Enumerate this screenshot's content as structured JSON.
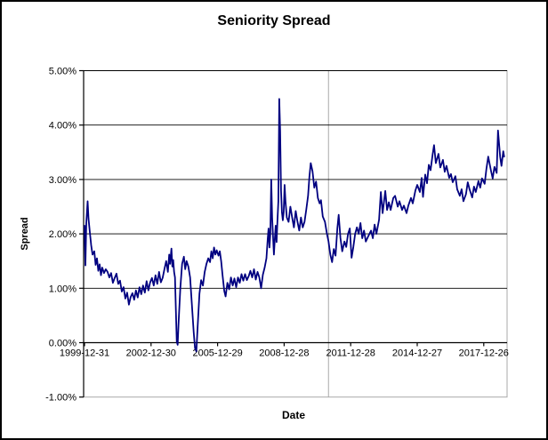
{
  "window": {
    "background": "#ffffff",
    "border_color": "#000000"
  },
  "colors": {
    "series_line": "#000080",
    "gridline": "#000000",
    "axis_line": "#000000",
    "plot_border": "#a9a9a9",
    "vertical_marker": "#a9a9a9",
    "text": "#000000"
  },
  "chart_data": {
    "type": "line",
    "title": "Seniority Spread",
    "xlabel": "Date",
    "ylabel": "Spread",
    "legend": "none",
    "grid": "horizontal-black-gridlines, light-gray plot border, one light-gray vertical marker line",
    "ylim": [
      -1,
      5
    ],
    "y_ticks": [
      {
        "v": 5,
        "label": "5.00%"
      },
      {
        "v": 4,
        "label": "4.00%"
      },
      {
        "v": 3,
        "label": "3.00%"
      },
      {
        "v": 2,
        "label": "2.00%"
      },
      {
        "v": 1,
        "label": "1.00%"
      },
      {
        "v": 0,
        "label": "0.00%"
      },
      {
        "v": -1,
        "label": "-1.00%"
      }
    ],
    "x_ticks": [
      {
        "year": 2000,
        "label": "1999-12-31"
      },
      {
        "year": 2003,
        "label": "2002-12-30"
      },
      {
        "year": 2006,
        "label": "2005-12-29"
      },
      {
        "year": 2009,
        "label": "2008-12-28"
      },
      {
        "year": 2012,
        "label": "2011-12-28"
      },
      {
        "year": 2015,
        "label": "2014-12-27"
      },
      {
        "year": 2018,
        "label": "2017-12-26"
      }
    ],
    "vertical_marker": {
      "year": 2011.0
    },
    "series": [
      {
        "name": "Seniority Spread",
        "color": "#000080",
        "points": [
          [
            2000.0,
            2.15
          ],
          [
            2000.04,
            1.42
          ],
          [
            2000.08,
            2.2
          ],
          [
            2000.14,
            2.6
          ],
          [
            2000.18,
            2.28
          ],
          [
            2000.24,
            2.03
          ],
          [
            2000.3,
            1.79
          ],
          [
            2000.36,
            1.62
          ],
          [
            2000.44,
            1.68
          ],
          [
            2000.5,
            1.43
          ],
          [
            2000.56,
            1.55
          ],
          [
            2000.62,
            1.32
          ],
          [
            2000.68,
            1.44
          ],
          [
            2000.74,
            1.24
          ],
          [
            2000.8,
            1.38
          ],
          [
            2000.88,
            1.28
          ],
          [
            2000.96,
            1.35
          ],
          [
            2001.04,
            1.3
          ],
          [
            2001.12,
            1.2
          ],
          [
            2001.2,
            1.28
          ],
          [
            2001.28,
            1.1
          ],
          [
            2001.36,
            1.19
          ],
          [
            2001.44,
            1.27
          ],
          [
            2001.52,
            1.08
          ],
          [
            2001.6,
            1.14
          ],
          [
            2001.68,
            0.94
          ],
          [
            2001.76,
            1.02
          ],
          [
            2001.84,
            0.81
          ],
          [
            2001.92,
            0.92
          ],
          [
            2002.0,
            0.7
          ],
          [
            2002.08,
            0.84
          ],
          [
            2002.16,
            0.91
          ],
          [
            2002.24,
            0.79
          ],
          [
            2002.32,
            0.96
          ],
          [
            2002.4,
            0.83
          ],
          [
            2002.48,
            1.02
          ],
          [
            2002.56,
            0.89
          ],
          [
            2002.64,
            1.05
          ],
          [
            2002.72,
            0.92
          ],
          [
            2002.8,
            1.13
          ],
          [
            2002.88,
            0.96
          ],
          [
            2002.96,
            1.11
          ],
          [
            2003.04,
            1.19
          ],
          [
            2003.12,
            1.05
          ],
          [
            2003.2,
            1.24
          ],
          [
            2003.28,
            1.08
          ],
          [
            2003.36,
            1.3
          ],
          [
            2003.44,
            1.11
          ],
          [
            2003.52,
            1.19
          ],
          [
            2003.6,
            1.35
          ],
          [
            2003.68,
            1.5
          ],
          [
            2003.76,
            1.3
          ],
          [
            2003.82,
            1.62
          ],
          [
            2003.86,
            1.45
          ],
          [
            2003.92,
            1.73
          ],
          [
            2003.96,
            1.4
          ],
          [
            2004.0,
            1.52
          ],
          [
            2004.04,
            1.3
          ],
          [
            2004.08,
            1.2
          ],
          [
            2004.12,
            0.6
          ],
          [
            2004.16,
            0.02
          ],
          [
            2004.2,
            -0.04
          ],
          [
            2004.24,
            0.35
          ],
          [
            2004.32,
            1.0
          ],
          [
            2004.4,
            1.45
          ],
          [
            2004.48,
            1.58
          ],
          [
            2004.54,
            1.35
          ],
          [
            2004.6,
            1.5
          ],
          [
            2004.68,
            1.4
          ],
          [
            2004.76,
            1.2
          ],
          [
            2004.84,
            0.7
          ],
          [
            2004.92,
            0.2
          ],
          [
            2004.98,
            -0.1
          ],
          [
            2005.04,
            -0.16
          ],
          [
            2005.1,
            0.3
          ],
          [
            2005.18,
            0.9
          ],
          [
            2005.26,
            1.15
          ],
          [
            2005.34,
            1.05
          ],
          [
            2005.42,
            1.3
          ],
          [
            2005.5,
            1.45
          ],
          [
            2005.58,
            1.55
          ],
          [
            2005.66,
            1.48
          ],
          [
            2005.72,
            1.68
          ],
          [
            2005.78,
            1.55
          ],
          [
            2005.84,
            1.75
          ],
          [
            2005.9,
            1.62
          ],
          [
            2005.96,
            1.7
          ],
          [
            2006.04,
            1.6
          ],
          [
            2006.1,
            1.68
          ],
          [
            2006.16,
            1.5
          ],
          [
            2006.22,
            1.25
          ],
          [
            2006.3,
            0.95
          ],
          [
            2006.36,
            0.85
          ],
          [
            2006.44,
            1.1
          ],
          [
            2006.52,
            0.98
          ],
          [
            2006.6,
            1.2
          ],
          [
            2006.68,
            1.05
          ],
          [
            2006.76,
            1.18
          ],
          [
            2006.84,
            1.02
          ],
          [
            2006.92,
            1.2
          ],
          [
            2007.0,
            1.1
          ],
          [
            2007.08,
            1.26
          ],
          [
            2007.16,
            1.14
          ],
          [
            2007.24,
            1.26
          ],
          [
            2007.32,
            1.15
          ],
          [
            2007.4,
            1.22
          ],
          [
            2007.48,
            1.32
          ],
          [
            2007.56,
            1.2
          ],
          [
            2007.64,
            1.35
          ],
          [
            2007.72,
            1.16
          ],
          [
            2007.8,
            1.3
          ],
          [
            2007.88,
            1.2
          ],
          [
            2007.96,
            1.0
          ],
          [
            2008.04,
            1.25
          ],
          [
            2008.12,
            1.38
          ],
          [
            2008.2,
            1.55
          ],
          [
            2008.26,
            1.9
          ],
          [
            2008.3,
            2.1
          ],
          [
            2008.34,
            1.75
          ],
          [
            2008.38,
            2.0
          ],
          [
            2008.42,
            3.0
          ],
          [
            2008.46,
            2.3
          ],
          [
            2008.5,
            1.95
          ],
          [
            2008.54,
            1.62
          ],
          [
            2008.58,
            1.9
          ],
          [
            2008.62,
            2.15
          ],
          [
            2008.66,
            1.85
          ],
          [
            2008.7,
            2.25
          ],
          [
            2008.74,
            2.6
          ],
          [
            2008.78,
            4.48
          ],
          [
            2008.82,
            3.9
          ],
          [
            2008.86,
            2.8
          ],
          [
            2008.9,
            2.4
          ],
          [
            2008.94,
            2.25
          ],
          [
            2008.98,
            2.4
          ],
          [
            2009.02,
            2.9
          ],
          [
            2009.06,
            2.6
          ],
          [
            2009.12,
            2.3
          ],
          [
            2009.2,
            2.22
          ],
          [
            2009.28,
            2.5
          ],
          [
            2009.36,
            2.3
          ],
          [
            2009.44,
            2.12
          ],
          [
            2009.52,
            2.42
          ],
          [
            2009.6,
            2.22
          ],
          [
            2009.68,
            2.06
          ],
          [
            2009.76,
            2.3
          ],
          [
            2009.84,
            2.12
          ],
          [
            2009.92,
            2.22
          ],
          [
            2010.0,
            2.45
          ],
          [
            2010.08,
            2.7
          ],
          [
            2010.14,
            3.05
          ],
          [
            2010.2,
            3.3
          ],
          [
            2010.28,
            3.15
          ],
          [
            2010.36,
            2.85
          ],
          [
            2010.44,
            2.96
          ],
          [
            2010.52,
            2.66
          ],
          [
            2010.6,
            2.56
          ],
          [
            2010.66,
            2.62
          ],
          [
            2010.74,
            2.32
          ],
          [
            2010.84,
            2.22
          ],
          [
            2010.92,
            2.02
          ],
          [
            2011.0,
            1.86
          ],
          [
            2011.08,
            1.62
          ],
          [
            2011.16,
            1.48
          ],
          [
            2011.24,
            1.72
          ],
          [
            2011.32,
            1.6
          ],
          [
            2011.4,
            2.1
          ],
          [
            2011.46,
            2.35
          ],
          [
            2011.54,
            1.92
          ],
          [
            2011.62,
            1.68
          ],
          [
            2011.72,
            1.86
          ],
          [
            2011.8,
            1.76
          ],
          [
            2011.88,
            2.0
          ],
          [
            2011.96,
            2.1
          ],
          [
            2012.04,
            1.56
          ],
          [
            2012.12,
            1.76
          ],
          [
            2012.2,
            2.0
          ],
          [
            2012.28,
            2.12
          ],
          [
            2012.36,
            2.0
          ],
          [
            2012.44,
            2.2
          ],
          [
            2012.52,
            1.92
          ],
          [
            2012.6,
            2.06
          ],
          [
            2012.68,
            1.86
          ],
          [
            2012.8,
            1.96
          ],
          [
            2012.92,
            2.06
          ],
          [
            2013.0,
            1.92
          ],
          [
            2013.08,
            2.17
          ],
          [
            2013.16,
            2.0
          ],
          [
            2013.28,
            2.26
          ],
          [
            2013.36,
            2.77
          ],
          [
            2013.44,
            2.38
          ],
          [
            2013.56,
            2.79
          ],
          [
            2013.64,
            2.44
          ],
          [
            2013.72,
            2.58
          ],
          [
            2013.8,
            2.44
          ],
          [
            2013.92,
            2.66
          ],
          [
            2014.0,
            2.7
          ],
          [
            2014.12,
            2.5
          ],
          [
            2014.2,
            2.6
          ],
          [
            2014.32,
            2.44
          ],
          [
            2014.4,
            2.52
          ],
          [
            2014.52,
            2.38
          ],
          [
            2014.6,
            2.52
          ],
          [
            2014.72,
            2.66
          ],
          [
            2014.8,
            2.56
          ],
          [
            2014.92,
            2.8
          ],
          [
            2015.0,
            2.9
          ],
          [
            2015.12,
            2.77
          ],
          [
            2015.2,
            3.03
          ],
          [
            2015.26,
            2.68
          ],
          [
            2015.36,
            3.09
          ],
          [
            2015.44,
            2.93
          ],
          [
            2015.52,
            3.27
          ],
          [
            2015.6,
            3.17
          ],
          [
            2015.7,
            3.47
          ],
          [
            2015.76,
            3.63
          ],
          [
            2015.84,
            3.3
          ],
          [
            2015.96,
            3.47
          ],
          [
            2016.04,
            3.22
          ],
          [
            2016.16,
            3.36
          ],
          [
            2016.24,
            3.14
          ],
          [
            2016.32,
            3.25
          ],
          [
            2016.44,
            3.03
          ],
          [
            2016.52,
            3.1
          ],
          [
            2016.6,
            2.95
          ],
          [
            2016.72,
            3.06
          ],
          [
            2016.8,
            2.82
          ],
          [
            2016.92,
            2.7
          ],
          [
            2017.0,
            2.82
          ],
          [
            2017.08,
            2.6
          ],
          [
            2017.2,
            2.73
          ],
          [
            2017.28,
            2.95
          ],
          [
            2017.36,
            2.82
          ],
          [
            2017.48,
            2.67
          ],
          [
            2017.56,
            2.87
          ],
          [
            2017.64,
            2.77
          ],
          [
            2017.76,
            2.97
          ],
          [
            2017.84,
            2.85
          ],
          [
            2017.92,
            3.02
          ],
          [
            2018.04,
            2.92
          ],
          [
            2018.12,
            3.2
          ],
          [
            2018.2,
            3.42
          ],
          [
            2018.32,
            3.17
          ],
          [
            2018.4,
            3.02
          ],
          [
            2018.48,
            3.23
          ],
          [
            2018.58,
            3.12
          ],
          [
            2018.64,
            3.9
          ],
          [
            2018.74,
            3.42
          ],
          [
            2018.8,
            3.25
          ],
          [
            2018.88,
            3.52
          ],
          [
            2018.92,
            3.42
          ]
        ]
      }
    ]
  }
}
